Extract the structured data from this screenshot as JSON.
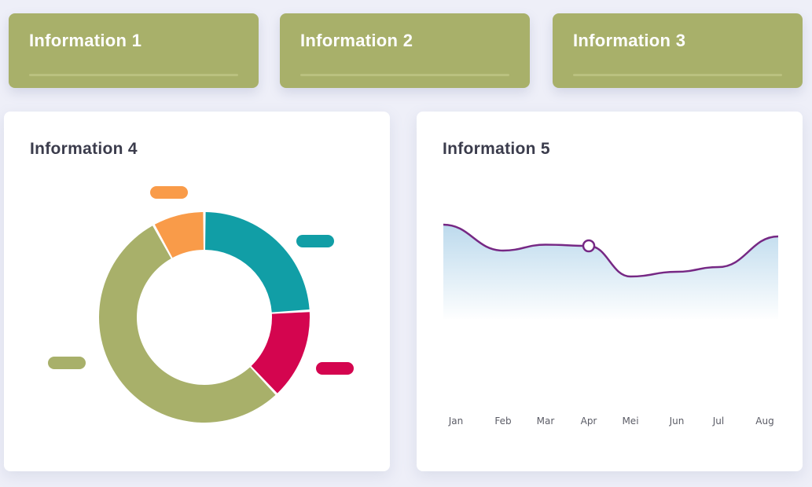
{
  "cards": [
    {
      "title": "Information 1"
    },
    {
      "title": "Information 2"
    },
    {
      "title": "Information 3"
    }
  ],
  "donut_panel": {
    "title": "Information 4"
  },
  "line_panel": {
    "title": "Information 5"
  },
  "chart_data": [
    {
      "type": "pie",
      "title": "Information 4",
      "donut": true,
      "labels": [
        "",
        "",
        "",
        ""
      ],
      "values": [
        24,
        14,
        54,
        8
      ],
      "colors": [
        "#119ea6",
        "#d4054f",
        "#a8b06a",
        "#f99b49"
      ]
    },
    {
      "type": "area",
      "title": "Information 5",
      "x": [
        "Jan",
        "Feb",
        "Mar",
        "Apr",
        "Mei",
        "Jun",
        "Jul",
        "Aug"
      ],
      "series": [
        {
          "values": [
            80,
            58,
            63,
            62,
            36,
            40,
            44,
            70
          ]
        }
      ],
      "highlight": "Apr",
      "ylim": [
        0,
        100
      ],
      "grid": false,
      "line_color": "#762884",
      "fill_top_color": "#b9d8ec"
    }
  ]
}
